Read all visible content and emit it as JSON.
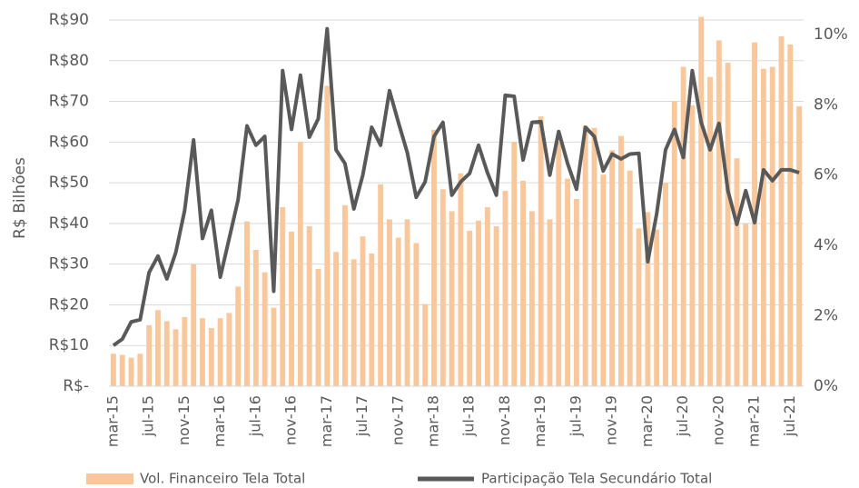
{
  "chart_data": {
    "type": "bar",
    "y_label": "R$ Bilhões",
    "categories": [
      "mar-15",
      null,
      null,
      null,
      "jul-15",
      null,
      null,
      null,
      "nov-15",
      null,
      null,
      null,
      "mar-16",
      null,
      null,
      null,
      "jul-16",
      null,
      null,
      null,
      "nov-16",
      null,
      null,
      null,
      "mar-17",
      null,
      null,
      null,
      "jul-17",
      null,
      null,
      null,
      "nov-17",
      null,
      null,
      null,
      "mar-18",
      null,
      null,
      null,
      "jul-18",
      null,
      null,
      null,
      "nov-18",
      null,
      null,
      null,
      "mar-19",
      null,
      null,
      null,
      "jul-19",
      null,
      null,
      null,
      "nov-19",
      null,
      null,
      null,
      "mar-20",
      null,
      null,
      null,
      "jul-20",
      null,
      null,
      null,
      "nov-20",
      null,
      null,
      null,
      "mar-21",
      null,
      null,
      null,
      "jul-21",
      null
    ],
    "series": [
      {
        "name": "Vol. Financeiro Tela Total",
        "type": "bar",
        "color": "#f8c89c",
        "values": [
          8,
          7.7,
          7,
          8,
          15,
          18.7,
          16,
          14,
          17,
          30,
          16.7,
          14.3,
          16.7,
          18,
          24.5,
          40.5,
          33.5,
          28,
          19.3,
          44,
          38,
          60,
          39.3,
          28.8,
          73.8,
          33,
          44.5,
          31.2,
          36.8,
          32.6,
          49.6,
          41,
          36.5,
          41,
          35.2,
          20.2,
          63,
          48.4,
          43,
          52.3,
          38.2,
          40.7,
          44,
          39.3,
          48,
          60,
          50.5,
          43,
          66.3,
          41,
          60,
          51,
          46,
          64,
          63.5,
          52,
          58,
          61.5,
          53,
          38.8,
          42.8,
          38.5,
          50,
          70,
          78.5,
          69,
          90.8,
          76,
          85,
          79.5,
          56,
          40,
          84.5,
          78,
          78.5,
          86,
          84,
          68.8
        ]
      },
      {
        "name": "Participação Tela Secundário Total",
        "type": "line",
        "axis": "y2",
        "color": "#595959",
        "values": [
          1.16,
          1.34,
          1.83,
          1.89,
          3.23,
          3.7,
          3.05,
          3.8,
          5.0,
          7.0,
          4.2,
          5.0,
          3.1,
          4.2,
          5.3,
          7.4,
          6.85,
          7.1,
          2.7,
          8.97,
          7.3,
          8.84,
          7.08,
          7.6,
          10.16,
          6.72,
          6.33,
          5.04,
          6.0,
          7.36,
          6.85,
          8.4,
          7.5,
          6.64,
          5.37,
          5.81,
          7.1,
          7.5,
          5.43,
          5.81,
          6.05,
          6.85,
          6.07,
          5.43,
          8.27,
          8.24,
          6.43,
          7.5,
          7.52,
          6.0,
          7.24,
          6.33,
          5.6,
          7.36,
          7.1,
          6.12,
          6.6,
          6.46,
          6.6,
          6.62,
          3.54,
          4.9,
          6.72,
          7.3,
          6.5,
          8.97,
          7.5,
          6.72,
          7.47,
          5.56,
          4.6,
          5.56,
          4.65,
          6.15,
          5.84,
          6.15,
          6.15,
          6.07
        ]
      }
    ],
    "ylim": [
      0,
      90
    ],
    "yticks": [
      {
        "value": 0,
        "label": "R$-"
      },
      {
        "value": 10,
        "label": "R$10"
      },
      {
        "value": 20,
        "label": "R$20"
      },
      {
        "value": 30,
        "label": "R$30"
      },
      {
        "value": 40,
        "label": "R$40"
      },
      {
        "value": 50,
        "label": "R$50"
      },
      {
        "value": 60,
        "label": "R$60"
      },
      {
        "value": 70,
        "label": "R$70"
      },
      {
        "value": 80,
        "label": "R$80"
      },
      {
        "value": 90,
        "label": "R$90"
      }
    ],
    "y2lim": [
      0,
      10.41
    ],
    "y2ticks": [
      {
        "value": 0,
        "label": "0%"
      },
      {
        "value": 2,
        "label": "2%"
      },
      {
        "value": 4,
        "label": "4%"
      },
      {
        "value": 6,
        "label": "6%"
      },
      {
        "value": 8,
        "label": "8%"
      },
      {
        "value": 10,
        "label": "10%"
      }
    ],
    "grid": true,
    "legend": "bottom"
  }
}
